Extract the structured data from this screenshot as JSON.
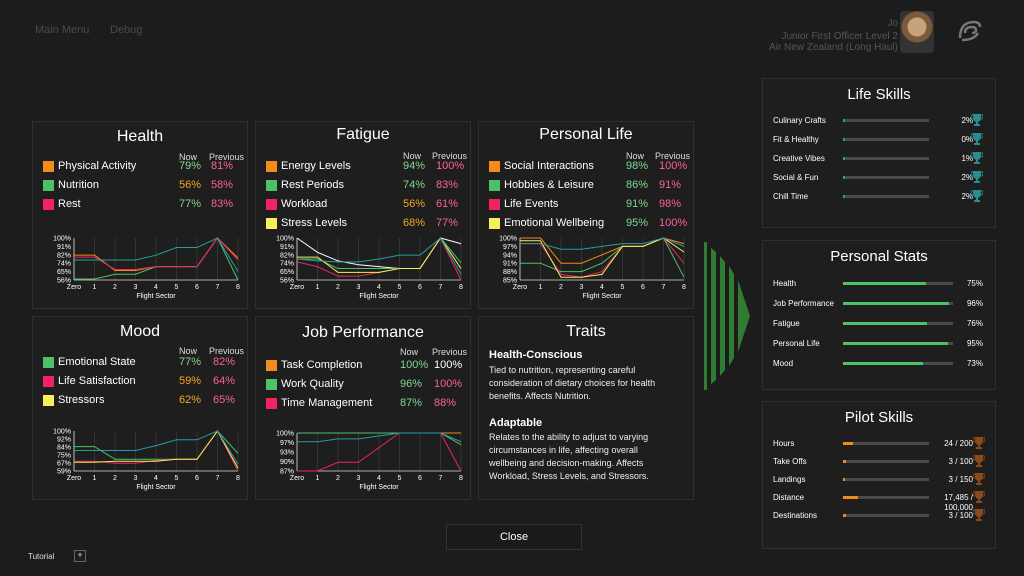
{
  "nav": {
    "main_menu": "Main Menu",
    "debug": "Debug"
  },
  "profile": {
    "name": "Jo",
    "rank": "Junior First Officer Level 2",
    "airline": "Air New Zealand (Long Haul)"
  },
  "colors": {
    "orange": "#f28a1c",
    "green": "#4cc16a",
    "pink": "#f0245e",
    "yellow": "#f5f05a",
    "now_green": "#7fd98f",
    "now_yellow": "#f5a623",
    "prev_pink": "#ff5fa2",
    "teal": "#2a9c9c",
    "arrow": "#2f7d32",
    "white": "#ffffff",
    "grid": "#555555"
  },
  "panels": {
    "health": {
      "title": "Health",
      "now": "Now",
      "previous": "Previous",
      "rows": [
        {
          "label": "Physical Activity",
          "color": "orange",
          "now": "79%",
          "now_color": "now_green",
          "prev": "81%"
        },
        {
          "label": "Nutrition",
          "color": "green",
          "now": "56%",
          "now_color": "now_yellow",
          "prev": "58%"
        },
        {
          "label": "Rest",
          "color": "pink",
          "now": "77%",
          "now_color": "now_green",
          "prev": "83%"
        }
      ]
    },
    "fatigue": {
      "title": "Fatigue",
      "now": "Now",
      "previous": "Previous",
      "rows": [
        {
          "label": "Energy Levels",
          "color": "orange",
          "now": "94%",
          "now_color": "now_green",
          "prev": "100%"
        },
        {
          "label": "Rest Periods",
          "color": "green",
          "now": "74%",
          "now_color": "now_green",
          "prev": "83%"
        },
        {
          "label": "Workload",
          "color": "pink",
          "now": "56%",
          "now_color": "now_yellow",
          "prev": "61%"
        },
        {
          "label": "Stress Levels",
          "color": "yellow",
          "now": "68%",
          "now_color": "now_yellow",
          "prev": "77%"
        }
      ]
    },
    "personal": {
      "title": "Personal Life",
      "now": "Now",
      "previous": "Previous",
      "rows": [
        {
          "label": "Social Interactions",
          "color": "orange",
          "now": "98%",
          "now_color": "now_green",
          "prev": "100%"
        },
        {
          "label": "Hobbies & Leisure",
          "color": "green",
          "now": "86%",
          "now_color": "now_green",
          "prev": "91%"
        },
        {
          "label": "Life Events",
          "color": "pink",
          "now": "91%",
          "now_color": "now_green",
          "prev": "98%"
        },
        {
          "label": "Emotional Wellbeing",
          "color": "yellow",
          "now": "95%",
          "now_color": "now_green",
          "prev": "100%"
        }
      ]
    },
    "mood": {
      "title": "Mood",
      "now": "Now",
      "previous": "Previous",
      "rows": [
        {
          "label": "Emotional State",
          "color": "green",
          "now": "77%",
          "now_color": "now_green",
          "prev": "82%"
        },
        {
          "label": "Life Satisfaction",
          "color": "pink",
          "now": "59%",
          "now_color": "now_yellow",
          "prev": "64%"
        },
        {
          "label": "Stressors",
          "color": "yellow",
          "now": "62%",
          "now_color": "now_yellow",
          "prev": "65%"
        }
      ]
    },
    "job": {
      "title": "Job Performance",
      "now": "Now",
      "previous": "Previous",
      "rows": [
        {
          "label": "Task Completion",
          "color": "orange",
          "now": "100%",
          "now_color": "now_green",
          "prev": "100%",
          "prev_color": "white"
        },
        {
          "label": "Work Quality",
          "color": "green",
          "now": "96%",
          "now_color": "now_green",
          "prev": "100%"
        },
        {
          "label": "Time Management",
          "color": "pink",
          "now": "87%",
          "now_color": "now_green",
          "prev": "88%"
        }
      ]
    },
    "traits": {
      "title": "Traits",
      "items": [
        {
          "name": "Health-Conscious",
          "desc": "Tied to nutrition, representing careful consideration of dietary choices for health benefits. Affects Nutrition."
        },
        {
          "name": "Adaptable",
          "desc": "Relates to the ability to adjust to varying circumstances in life, affecting overall wellbeing and decision-making. Affects Workload, Stress Levels, and Stressors."
        }
      ]
    }
  },
  "chart_data": [
    {
      "type": "line",
      "panel": "health",
      "xlabel": "Flight Sector",
      "x": [
        "Zero",
        "1",
        "2",
        "3",
        "4",
        "5",
        "6",
        "7",
        "8"
      ],
      "yticks": [
        "100%",
        "91%",
        "82%",
        "74%",
        "65%",
        "56%"
      ],
      "ylim": [
        56,
        100
      ],
      "series": [
        {
          "color": "orange",
          "values": [
            82,
            82,
            66,
            66,
            70,
            70,
            70,
            100,
            79
          ]
        },
        {
          "color": "green",
          "values": [
            57,
            57,
            62,
            62,
            70,
            70,
            70,
            100,
            56
          ]
        },
        {
          "color": "pink",
          "values": [
            80,
            80,
            67,
            67,
            70,
            70,
            70,
            100,
            77
          ]
        },
        {
          "color": "teal",
          "values": [
            77,
            77,
            77,
            77,
            82,
            90,
            90,
            100,
            65
          ]
        }
      ]
    },
    {
      "type": "line",
      "panel": "fatigue",
      "xlabel": "Flight Sector",
      "x": [
        "Zero",
        "1",
        "2",
        "3",
        "4",
        "5",
        "6",
        "7",
        "8"
      ],
      "yticks": [
        "100%",
        "91%",
        "82%",
        "74%",
        "65%",
        "56%"
      ],
      "ylim": [
        56,
        100
      ],
      "series": [
        {
          "color": "white",
          "values": [
            100,
            85,
            76,
            72,
            70,
            68,
            68,
            100,
            94
          ]
        },
        {
          "color": "green",
          "values": [
            78,
            78,
            68,
            68,
            68,
            68,
            68,
            100,
            74
          ]
        },
        {
          "color": "pink",
          "values": [
            75,
            70,
            60,
            60,
            64,
            68,
            68,
            100,
            56
          ]
        },
        {
          "color": "yellow",
          "values": [
            80,
            80,
            64,
            64,
            64,
            68,
            68,
            100,
            68
          ]
        },
        {
          "color": "teal",
          "values": [
            78,
            76,
            75,
            75,
            78,
            82,
            82,
            100,
            62
          ]
        }
      ]
    },
    {
      "type": "line",
      "panel": "personal",
      "xlabel": "Flight Sector",
      "x": [
        "Zero",
        "1",
        "2",
        "3",
        "4",
        "5",
        "6",
        "7",
        "8"
      ],
      "yticks": [
        "100%",
        "97%",
        "94%",
        "91%",
        "88%",
        "85%"
      ],
      "ylim": [
        85,
        100
      ],
      "series": [
        {
          "color": "orange",
          "values": [
            100,
            100,
            91,
            91,
            94,
            97,
            97,
            100,
            98
          ]
        },
        {
          "color": "green",
          "values": [
            91,
            91,
            88,
            88,
            91,
            97,
            97,
            100,
            86
          ]
        },
        {
          "color": "pink",
          "values": [
            98,
            98,
            87,
            86,
            88,
            97,
            97,
            100,
            91
          ]
        },
        {
          "color": "yellow",
          "values": [
            99,
            99,
            86,
            86,
            87,
            97,
            97,
            100,
            95
          ]
        },
        {
          "color": "teal",
          "values": [
            98,
            98,
            96,
            96,
            97,
            98,
            98,
            100,
            97
          ]
        }
      ]
    },
    {
      "type": "line",
      "panel": "mood",
      "xlabel": "Flight Sector",
      "x": [
        "Zero",
        "1",
        "2",
        "3",
        "4",
        "5",
        "6",
        "7",
        "8"
      ],
      "yticks": [
        "100%",
        "92%",
        "84%",
        "75%",
        "67%",
        "59%"
      ],
      "ylim": [
        59,
        100
      ],
      "series": [
        {
          "color": "green",
          "values": [
            84,
            84,
            71,
            71,
            71,
            71,
            71,
            100,
            77
          ]
        },
        {
          "color": "pink",
          "values": [
            69,
            69,
            67,
            67,
            70,
            71,
            71,
            100,
            59
          ]
        },
        {
          "color": "yellow",
          "values": [
            68,
            68,
            69,
            69,
            69,
            71,
            71,
            100,
            62
          ]
        },
        {
          "color": "teal",
          "values": [
            80,
            80,
            80,
            80,
            85,
            91,
            91,
            100,
            66
          ]
        }
      ]
    },
    {
      "type": "line",
      "panel": "job",
      "xlabel": "Flight Sector",
      "x": [
        "Zero",
        "1",
        "2",
        "3",
        "4",
        "5",
        "6",
        "7",
        "8"
      ],
      "yticks": [
        "100%",
        "97%",
        "93%",
        "90%",
        "87%"
      ],
      "ylim": [
        87,
        100
      ],
      "series": [
        {
          "color": "orange",
          "values": [
            100,
            100,
            100,
            100,
            100,
            100,
            100,
            100,
            100
          ]
        },
        {
          "color": "green",
          "values": [
            100,
            100,
            100,
            100,
            100,
            100,
            100,
            100,
            96
          ]
        },
        {
          "color": "pink",
          "values": [
            87,
            87,
            90,
            90,
            95,
            100,
            100,
            100,
            87
          ]
        },
        {
          "color": "teal",
          "values": [
            97,
            97,
            98,
            98,
            99,
            100,
            100,
            100,
            97
          ]
        }
      ]
    }
  ],
  "life_skills": {
    "title": "Life Skills",
    "items": [
      {
        "label": "Culinary Crafts",
        "value": "2%",
        "fraction": 0.02
      },
      {
        "label": "Fit & Healthy",
        "value": "0%",
        "fraction": 0.0
      },
      {
        "label": "Creative Vibes",
        "value": "1%",
        "fraction": 0.01
      },
      {
        "label": "Social & Fun",
        "value": "2%",
        "fraction": 0.02
      },
      {
        "label": "Chill Time",
        "value": "2%",
        "fraction": 0.02
      }
    ]
  },
  "personal_stats": {
    "title": "Personal Stats",
    "items": [
      {
        "label": "Health",
        "value": "75%",
        "fraction": 0.75
      },
      {
        "label": "Job Performance",
        "value": "96%",
        "fraction": 0.96
      },
      {
        "label": "Fatigue",
        "value": "76%",
        "fraction": 0.76
      },
      {
        "label": "Personal Life",
        "value": "95%",
        "fraction": 0.95
      },
      {
        "label": "Mood",
        "value": "73%",
        "fraction": 0.73
      }
    ]
  },
  "pilot_skills": {
    "title": "Pilot Skills",
    "items": [
      {
        "label": "Hours",
        "value": "24 / 200",
        "fraction": 0.12
      },
      {
        "label": "Take Offs",
        "value": "3 / 100",
        "fraction": 0.03
      },
      {
        "label": "Landings",
        "value": "3 / 150",
        "fraction": 0.02
      },
      {
        "label": "Distance",
        "value": "17,485 / 100,000",
        "fraction": 0.17
      },
      {
        "label": "Destinations",
        "value": "3 / 100",
        "fraction": 0.03
      }
    ]
  },
  "footer": {
    "close": "Close",
    "tutorial": "Tutorial",
    "plus": "+"
  }
}
